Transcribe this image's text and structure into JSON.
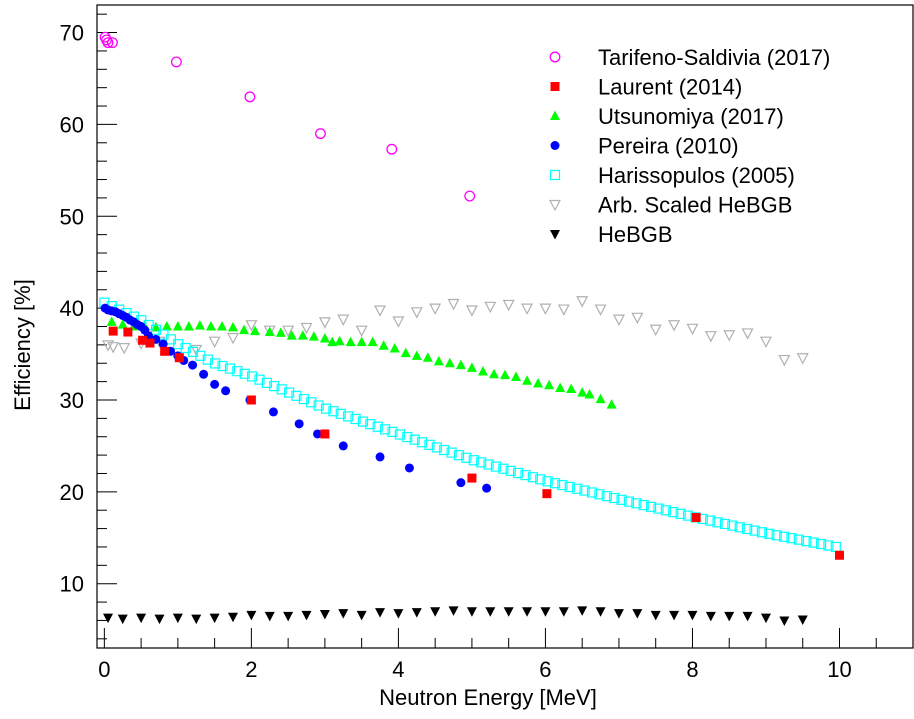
{
  "chart_data": {
    "type": "scatter",
    "xlabel": "Neutron Energy [MeV]",
    "ylabel": "Efficiency [%]",
    "xlim": [
      -0.1,
      11.0
    ],
    "ylim": [
      3.0,
      73.0
    ],
    "x_ticks": [
      0,
      2,
      4,
      6,
      8,
      10
    ],
    "y_ticks": [
      10,
      20,
      30,
      40,
      50,
      60,
      70
    ],
    "x_tick_labels": [
      "0",
      "2",
      "4",
      "6",
      "8",
      "10"
    ],
    "y_tick_labels": [
      "10",
      "20",
      "30",
      "40",
      "50",
      "60",
      "70"
    ],
    "legend_position": "top-right",
    "grid": false,
    "series": [
      {
        "name": "Tarifeno-Saldivia (2017)",
        "marker": "open-circle",
        "color": "#ff00ff",
        "points": [
          [
            0.01,
            69.5
          ],
          [
            0.03,
            69.2
          ],
          [
            0.05,
            68.9
          ],
          [
            0.11,
            68.9
          ],
          [
            0.98,
            66.8
          ],
          [
            1.98,
            63.0
          ],
          [
            2.94,
            59.0
          ],
          [
            3.91,
            57.3
          ],
          [
            4.97,
            52.2
          ]
        ]
      },
      {
        "name": "Laurent (2014)",
        "marker": "filled-square",
        "color": "#ff0000",
        "points": [
          [
            0.12,
            37.5
          ],
          [
            0.32,
            37.4
          ],
          [
            0.52,
            36.5
          ],
          [
            0.62,
            36.2
          ],
          [
            0.82,
            35.3
          ],
          [
            1.02,
            34.6
          ],
          [
            2.0,
            30.0
          ],
          [
            3.0,
            26.3
          ],
          [
            5.0,
            21.5
          ],
          [
            6.02,
            19.8
          ],
          [
            8.05,
            17.2
          ],
          [
            10.0,
            13.1
          ]
        ]
      },
      {
        "name": "Utsunomiya (2017)",
        "marker": "filled-triangle-up",
        "color": "#00ff00",
        "points": [
          [
            0.1,
            38.5
          ],
          [
            0.25,
            38.2
          ],
          [
            0.4,
            38.0
          ],
          [
            0.55,
            38.0
          ],
          [
            0.7,
            37.9
          ],
          [
            0.85,
            38.0
          ],
          [
            1.0,
            38.0
          ],
          [
            1.15,
            38.0
          ],
          [
            1.3,
            38.1
          ],
          [
            1.45,
            38.0
          ],
          [
            1.6,
            38.0
          ],
          [
            1.75,
            37.9
          ],
          [
            1.9,
            37.6
          ],
          [
            2.05,
            37.5
          ],
          [
            2.25,
            37.4
          ],
          [
            2.4,
            37.3
          ],
          [
            2.55,
            37.0
          ],
          [
            2.7,
            37.0
          ],
          [
            2.85,
            36.9
          ],
          [
            3.0,
            36.7
          ],
          [
            3.1,
            36.3
          ],
          [
            3.2,
            36.4
          ],
          [
            3.35,
            36.3
          ],
          [
            3.5,
            36.3
          ],
          [
            3.65,
            36.3
          ],
          [
            3.8,
            35.9
          ],
          [
            3.95,
            35.6
          ],
          [
            4.1,
            35.1
          ],
          [
            4.25,
            34.8
          ],
          [
            4.4,
            34.6
          ],
          [
            4.55,
            34.2
          ],
          [
            4.7,
            34.0
          ],
          [
            4.85,
            33.8
          ],
          [
            5.0,
            33.5
          ],
          [
            5.15,
            33.1
          ],
          [
            5.3,
            32.8
          ],
          [
            5.45,
            32.7
          ],
          [
            5.6,
            32.5
          ],
          [
            5.75,
            32.1
          ],
          [
            5.9,
            31.8
          ],
          [
            6.05,
            31.6
          ],
          [
            6.2,
            31.3
          ],
          [
            6.35,
            31.2
          ],
          [
            6.5,
            30.8
          ],
          [
            6.6,
            30.6
          ],
          [
            6.75,
            30.1
          ],
          [
            6.9,
            29.5
          ]
        ]
      },
      {
        "name": "Pereira (2010)",
        "marker": "filled-circle",
        "color": "#0000ff",
        "points": [
          [
            0.01,
            40.0
          ],
          [
            0.05,
            39.8
          ],
          [
            0.1,
            39.7
          ],
          [
            0.15,
            39.6
          ],
          [
            0.2,
            39.4
          ],
          [
            0.25,
            39.2
          ],
          [
            0.3,
            39.0
          ],
          [
            0.35,
            38.7
          ],
          [
            0.4,
            38.5
          ],
          [
            0.45,
            38.2
          ],
          [
            0.5,
            38.0
          ],
          [
            0.55,
            37.6
          ],
          [
            0.6,
            37.0
          ],
          [
            0.7,
            36.6
          ],
          [
            0.8,
            36.1
          ],
          [
            0.9,
            35.3
          ],
          [
            1.0,
            34.8
          ],
          [
            1.08,
            34.3
          ],
          [
            1.2,
            33.8
          ],
          [
            1.35,
            32.8
          ],
          [
            1.5,
            31.7
          ],
          [
            1.65,
            31.0
          ],
          [
            1.98,
            30.0
          ],
          [
            2.3,
            28.7
          ],
          [
            2.65,
            27.4
          ],
          [
            2.9,
            26.3
          ],
          [
            3.25,
            25.0
          ],
          [
            3.75,
            23.8
          ],
          [
            4.15,
            22.6
          ],
          [
            4.85,
            21.0
          ],
          [
            5.2,
            20.4
          ]
        ]
      },
      {
        "name": "Harissopulos (2005)",
        "marker": "open-square",
        "color": "#00ffff",
        "points_generated": {
          "x_start": 0.0,
          "x_end": 9.95,
          "count": 100,
          "y_at": [
            [
              0.0,
              40.6
            ],
            [
              0.5,
              38.7
            ],
            [
              1.0,
              36.1
            ],
            [
              1.5,
              34.0
            ],
            [
              2.0,
              32.6
            ],
            [
              3.0,
              29.1
            ],
            [
              4.0,
              26.3
            ],
            [
              5.0,
              23.5
            ],
            [
              6.0,
              21.2
            ],
            [
              7.0,
              19.2
            ],
            [
              8.0,
              17.3
            ],
            [
              9.0,
              15.5
            ],
            [
              9.95,
              14.0
            ]
          ]
        }
      },
      {
        "name": "Arb. Scaled HeBGB",
        "marker": "open-triangle-down",
        "color": "#b0b0b0",
        "points": [
          [
            0.05,
            36.0
          ],
          [
            0.12,
            35.8
          ],
          [
            0.27,
            35.7
          ],
          [
            0.5,
            36.2
          ],
          [
            0.75,
            36.4
          ],
          [
            1.25,
            35.5
          ],
          [
            1.5,
            36.4
          ],
          [
            1.75,
            36.8
          ],
          [
            2.0,
            38.2
          ],
          [
            2.25,
            37.6
          ],
          [
            2.5,
            37.6
          ],
          [
            2.75,
            37.9
          ],
          [
            3.0,
            38.5
          ],
          [
            3.25,
            38.8
          ],
          [
            3.5,
            37.6
          ],
          [
            3.75,
            39.8
          ],
          [
            4.0,
            38.6
          ],
          [
            4.25,
            39.6
          ],
          [
            4.5,
            40.0
          ],
          [
            4.75,
            40.5
          ],
          [
            5.0,
            39.8
          ],
          [
            5.25,
            40.2
          ],
          [
            5.5,
            40.4
          ],
          [
            5.75,
            40.0
          ],
          [
            6.0,
            40.0
          ],
          [
            6.25,
            39.9
          ],
          [
            6.5,
            40.8
          ],
          [
            6.75,
            39.9
          ],
          [
            7.0,
            38.8
          ],
          [
            7.25,
            39.0
          ],
          [
            7.5,
            37.7
          ],
          [
            7.75,
            38.2
          ],
          [
            8.0,
            37.8
          ],
          [
            8.25,
            37.0
          ],
          [
            8.5,
            37.1
          ],
          [
            8.75,
            37.3
          ],
          [
            9.0,
            36.4
          ],
          [
            9.25,
            34.4
          ],
          [
            9.5,
            34.6
          ]
        ]
      },
      {
        "name": "HeBGB",
        "marker": "filled-triangle-down",
        "color": "#000000",
        "points": [
          [
            0.05,
            6.3
          ],
          [
            0.25,
            6.2
          ],
          [
            0.5,
            6.3
          ],
          [
            0.75,
            6.2
          ],
          [
            1.0,
            6.3
          ],
          [
            1.25,
            6.2
          ],
          [
            1.5,
            6.3
          ],
          [
            1.75,
            6.4
          ],
          [
            2.0,
            6.6
          ],
          [
            2.25,
            6.5
          ],
          [
            2.5,
            6.5
          ],
          [
            2.75,
            6.6
          ],
          [
            3.0,
            6.7
          ],
          [
            3.25,
            6.8
          ],
          [
            3.5,
            6.6
          ],
          [
            3.75,
            6.9
          ],
          [
            4.0,
            6.8
          ],
          [
            4.25,
            6.9
          ],
          [
            4.5,
            7.0
          ],
          [
            4.75,
            7.1
          ],
          [
            5.0,
            7.0
          ],
          [
            5.25,
            7.0
          ],
          [
            5.5,
            7.0
          ],
          [
            5.75,
            7.0
          ],
          [
            6.0,
            7.0
          ],
          [
            6.25,
            7.0
          ],
          [
            6.5,
            7.1
          ],
          [
            6.75,
            7.0
          ],
          [
            7.0,
            6.8
          ],
          [
            7.25,
            6.8
          ],
          [
            7.5,
            6.6
          ],
          [
            7.75,
            6.6
          ],
          [
            8.0,
            6.6
          ],
          [
            8.25,
            6.5
          ],
          [
            8.5,
            6.5
          ],
          [
            8.75,
            6.5
          ],
          [
            9.0,
            6.3
          ],
          [
            9.25,
            6.0
          ],
          [
            9.5,
            6.1
          ]
        ]
      }
    ]
  }
}
